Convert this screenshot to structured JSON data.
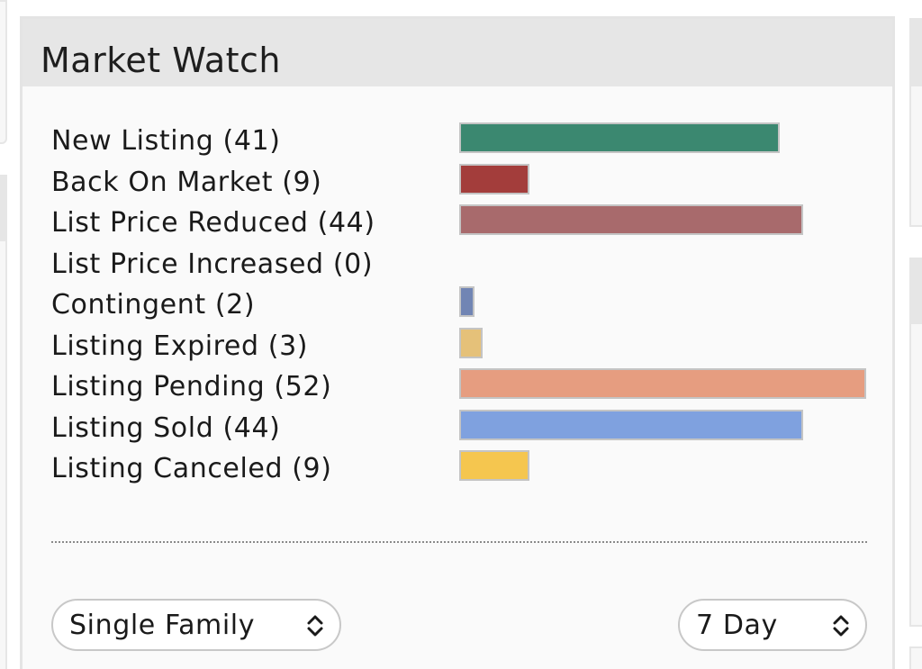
{
  "panel": {
    "title": "Market Watch"
  },
  "market_items": [
    {
      "label": "New Listing (41)",
      "count": 41,
      "color": "#3b8870"
    },
    {
      "label": "Back On Market (9)",
      "count": 9,
      "color": "#a33d3b"
    },
    {
      "label": "List Price Reduced (44)",
      "count": 44,
      "color": "#a86a6c"
    },
    {
      "label": "List Price Increased (0)",
      "count": 0,
      "color": "#8a8a8a"
    },
    {
      "label": "Contingent (2)",
      "count": 2,
      "color": "#7185b4"
    },
    {
      "label": "Listing Expired (3)",
      "count": 3,
      "color": "#e5c179"
    },
    {
      "label": "Listing Pending (52)",
      "count": 52,
      "color": "#e69d80"
    },
    {
      "label": "Listing Sold (44)",
      "count": 44,
      "color": "#7fa1df"
    },
    {
      "label": "Listing Canceled (9)",
      "count": 9,
      "color": "#f5c64f"
    }
  ],
  "filters": {
    "property_type": {
      "value": "Single Family",
      "icon": "up-down-chevron-icon"
    },
    "period": {
      "value": "7 Day",
      "icon": "up-down-chevron-icon"
    }
  }
}
